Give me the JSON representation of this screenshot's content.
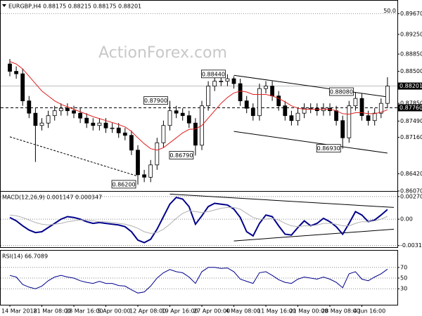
{
  "chart_data": [
    {
      "type": "candlestick",
      "title": "EURGBP,H4  0.88175 0.88215 0.88175 0.88201",
      "watermark": "ActionForex.com",
      "categories": [
        "14 Mar 2018",
        null,
        null,
        null,
        null,
        "21 Mar 08:00",
        null,
        null,
        null,
        null,
        "28 Mar 16:00",
        null,
        null,
        null,
        null,
        "5 Apr 00:00",
        null,
        null,
        null,
        null,
        "12 Apr 08:00",
        null,
        null,
        null,
        null,
        "19 Apr 16:00",
        null,
        null,
        null,
        null,
        "27 Apr 00:00",
        null,
        null,
        null,
        null,
        "4 May 08:00",
        null,
        null,
        null,
        null,
        "11 May 16:00",
        null,
        null,
        null,
        null,
        "21 May 00:00",
        null,
        null,
        null,
        null,
        "28 May 08:00",
        null,
        null,
        null,
        null,
        "4 Jun 16:00",
        null,
        null,
        null,
        null
      ],
      "open": [
        0.8865,
        0.885,
        0.8845,
        0.879,
        0.8765,
        0.874,
        0.8745,
        0.876,
        0.877,
        0.8775,
        0.877,
        0.8765,
        0.8755,
        0.8745,
        0.874,
        0.8745,
        0.8735,
        0.8735,
        0.8725,
        0.872,
        0.869,
        0.864,
        0.8635,
        0.866,
        0.8705,
        0.874,
        0.877,
        0.8765,
        0.876,
        0.8745,
        0.87,
        0.878,
        0.882,
        0.883,
        0.883,
        0.8835,
        0.8825,
        0.879,
        0.8775,
        0.876,
        0.8815,
        0.882,
        0.88,
        0.878,
        0.876,
        0.875,
        0.8765,
        0.8775,
        0.8775,
        0.877,
        0.8775,
        0.877,
        0.875,
        0.8715,
        0.878,
        0.8795,
        0.876,
        0.875,
        0.8765,
        0.8785
      ],
      "high": [
        0.8875,
        0.886,
        0.8855,
        0.88,
        0.8775,
        0.8755,
        0.877,
        0.878,
        0.8785,
        0.8785,
        0.878,
        0.8775,
        0.8765,
        0.8755,
        0.8755,
        0.8755,
        0.8745,
        0.8745,
        0.8735,
        0.873,
        0.87,
        0.865,
        0.867,
        0.8715,
        0.875,
        0.879,
        0.878,
        0.8775,
        0.877,
        0.8755,
        0.879,
        0.883,
        0.884,
        0.884,
        0.8844,
        0.884,
        0.8835,
        0.88,
        0.8785,
        0.8825,
        0.883,
        0.883,
        0.881,
        0.879,
        0.877,
        0.8775,
        0.8785,
        0.8785,
        0.8785,
        0.8785,
        0.8785,
        0.878,
        0.876,
        0.879,
        0.8808,
        0.8805,
        0.877,
        0.8775,
        0.8795,
        0.8838
      ],
      "low": [
        0.884,
        0.8835,
        0.878,
        0.8755,
        0.8666,
        0.873,
        0.8735,
        0.875,
        0.876,
        0.876,
        0.8755,
        0.8745,
        0.8735,
        0.873,
        0.873,
        0.8725,
        0.8725,
        0.8715,
        0.871,
        0.868,
        0.862,
        0.8625,
        0.8625,
        0.865,
        0.8695,
        0.873,
        0.8755,
        0.875,
        0.8735,
        0.8679,
        0.869,
        0.877,
        0.881,
        0.882,
        0.882,
        0.8815,
        0.878,
        0.8765,
        0.875,
        0.875,
        0.8805,
        0.879,
        0.877,
        0.875,
        0.874,
        0.874,
        0.8755,
        0.8765,
        0.876,
        0.876,
        0.876,
        0.874,
        0.8693,
        0.8705,
        0.877,
        0.875,
        0.874,
        0.874,
        0.8755,
        0.8775
      ],
      "close": [
        0.885,
        0.8845,
        0.879,
        0.8765,
        0.874,
        0.8745,
        0.876,
        0.877,
        0.8775,
        0.877,
        0.8765,
        0.8755,
        0.8745,
        0.874,
        0.8745,
        0.8735,
        0.8735,
        0.8725,
        0.872,
        0.869,
        0.864,
        0.8635,
        0.866,
        0.8705,
        0.874,
        0.877,
        0.8765,
        0.876,
        0.8745,
        0.87,
        0.878,
        0.882,
        0.883,
        0.883,
        0.8835,
        0.8825,
        0.879,
        0.8775,
        0.876,
        0.8815,
        0.882,
        0.88,
        0.878,
        0.876,
        0.875,
        0.8765,
        0.8775,
        0.8775,
        0.877,
        0.8775,
        0.877,
        0.875,
        0.8715,
        0.878,
        0.8795,
        0.876,
        0.875,
        0.8765,
        0.8785,
        0.88201
      ],
      "series": [
        {
          "color": "#e02020",
          "values": [
            0.887,
            0.8865,
            0.8855,
            0.884,
            0.8825,
            0.881,
            0.88,
            0.879,
            0.8783,
            0.8778,
            0.8773,
            0.8768,
            0.8763,
            0.8758,
            0.8754,
            0.875,
            0.8746,
            0.8742,
            0.8737,
            0.8728,
            0.8715,
            0.8703,
            0.8693,
            0.869,
            0.8695,
            0.8705,
            0.8715,
            0.8725,
            0.8732,
            0.8733,
            0.874,
            0.8755,
            0.877,
            0.8785,
            0.8797,
            0.8806,
            0.881,
            0.8808,
            0.8803,
            0.8803,
            0.8803,
            0.88,
            0.8795,
            0.8788,
            0.878,
            0.8775,
            0.8773,
            0.8773,
            0.8773,
            0.8773,
            0.8773,
            0.877,
            0.8764,
            0.8763,
            0.8766,
            0.8766,
            0.8764,
            0.8764,
            0.8767,
            0.8772
          ]
        }
      ],
      "ylim": [
        0.8607,
        0.8992
      ],
      "yticks": [
        {
          "value": 0.8967,
          "label": "0.89670"
        },
        {
          "value": 0.8925,
          "label": "0.89250"
        },
        {
          "value": 0.8885,
          "label": "0.88850"
        },
        {
          "value": 0.885,
          "label": "0.88500"
        },
        {
          "value": 0.8785,
          "label": "0.87850"
        },
        {
          "value": 0.8749,
          "label": "0.87490"
        },
        {
          "value": 0.8716,
          "label": "0.87160"
        },
        {
          "value": 0.8642,
          "label": "0.86420"
        },
        {
          "value": 0.8607,
          "label": "0.86070"
        }
      ],
      "levels": [
        {
          "value": 0.88201,
          "label": "0.88201",
          "dashed": false
        },
        {
          "value": 0.8776,
          "label": "0.87760",
          "dashed": true
        }
      ],
      "fib": {
        "value": 0.8967,
        "label": "50.0"
      },
      "annotations": [
        {
          "at": 34,
          "value": 0.8844,
          "label": "0.88440"
        },
        {
          "at": 25,
          "value": 0.879,
          "label": "0.87900"
        },
        {
          "at": 54,
          "value": 0.8808,
          "label": "0.88080"
        },
        {
          "at": 29,
          "value": 0.8679,
          "label": "0.86790"
        },
        {
          "at": 52,
          "value": 0.8693,
          "label": "0.86930"
        },
        {
          "at": 20,
          "value": 0.862,
          "label": "0.86200"
        }
      ],
      "trendlines": [
        {
          "from": [
            0,
            0.8717
          ],
          "to": [
            20,
            0.8637
          ],
          "dashed": true
        },
        {
          "from": [
            35,
            0.8842
          ],
          "to": [
            59,
            0.8798
          ],
          "dashed": false
        },
        {
          "from": [
            35,
            0.8728
          ],
          "to": [
            59,
            0.8684
          ],
          "dashed": false
        }
      ]
    },
    {
      "type": "line",
      "title": "MACD(12,26,9) 0.001147 0.000347",
      "series": [
        {
          "color": "#00008b",
          "width": 2,
          "values": [
            0.0002,
            -0.0002,
            -0.0008,
            -0.0013,
            -0.0016,
            -0.0015,
            -0.001,
            -0.0005,
            0,
            0.0003,
            0.0002,
            0,
            -0.0003,
            -0.0005,
            -0.0004,
            -0.0005,
            -0.0006,
            -0.0007,
            -0.0009,
            -0.0015,
            -0.0025,
            -0.0028,
            -0.0024,
            -0.0012,
            0.0003,
            0.0018,
            0.0026,
            0.0024,
            0.0015,
            -0.0006,
            0.0004,
            0.0015,
            0.0019,
            0.0018,
            0.0017,
            0.0012,
            0.0002,
            -0.0015,
            -0.002,
            -0.0005,
            0.0005,
            0.0003,
            -0.0008,
            -0.0018,
            -0.0019,
            -0.001,
            -0.0002,
            -0.0008,
            -0.0005,
            0.0001,
            -0.0003,
            -0.0009,
            -0.0018,
            -0.0005,
            0.0009,
            0.0005,
            -0.0003,
            -0.0001,
            0.0005,
            0.001147
          ]
        },
        {
          "color": "#b0b0b0",
          "width": 1,
          "values": [
            0.0005,
            0.0004,
            0.0002,
            -0.0001,
            -0.0004,
            -0.0006,
            -0.0007,
            -0.0006,
            -0.0005,
            -0.0003,
            -0.0002,
            -0.0001,
            -0.0001,
            -0.0002,
            -0.0003,
            -0.0003,
            -0.0004,
            -0.0005,
            -0.0006,
            -0.0008,
            -0.0011,
            -0.0015,
            -0.0017,
            -0.0016,
            -0.0012,
            -0.0006,
            0.0001,
            0.0007,
            0.001,
            0.0009,
            0.0008,
            0.0009,
            0.0011,
            0.0013,
            0.0014,
            0.0014,
            0.0012,
            0.0007,
            0.0002,
            0,
            0,
            0.0001,
            -0.0001,
            -0.0005,
            -0.0008,
            -0.0009,
            -0.0008,
            -0.0008,
            -0.0007,
            -0.0005,
            -0.0005,
            -0.0006,
            -0.0008,
            -0.0008,
            -0.0005,
            -0.0003,
            -0.0003,
            -0.0002,
            0,
            0.000347
          ]
        }
      ],
      "ylim": [
        -0.00335,
        0.0032
      ],
      "yticks": [
        0.002706,
        {
          "value": 0,
          "label": "0.00"
        },
        -0.003155
      ],
      "trendlines": [
        {
          "from": [
            25,
            0.003
          ],
          "to": [
            60,
            0.0014
          ],
          "dashed": false
        },
        {
          "from": [
            35,
            -0.0026
          ],
          "to": [
            60,
            -0.0012
          ],
          "dashed": false
        }
      ]
    },
    {
      "type": "line",
      "title": "RSI(14) 66.7089",
      "series": [
        {
          "color": "#00008b",
          "width": 1,
          "values": [
            55,
            52,
            38,
            33,
            30,
            35,
            45,
            52,
            55,
            52,
            50,
            45,
            42,
            40,
            44,
            40,
            40,
            36,
            35,
            28,
            22,
            24,
            35,
            50,
            60,
            66,
            62,
            60,
            52,
            40,
            62,
            70,
            70,
            68,
            69,
            62,
            48,
            44,
            40,
            60,
            62,
            55,
            47,
            42,
            40,
            48,
            52,
            50,
            48,
            52,
            48,
            42,
            32,
            58,
            62,
            48,
            45,
            52,
            58,
            66.7089
          ]
        }
      ],
      "ylim": [
        0,
        100
      ],
      "yticks": [
        70,
        50,
        30
      ]
    }
  ]
}
